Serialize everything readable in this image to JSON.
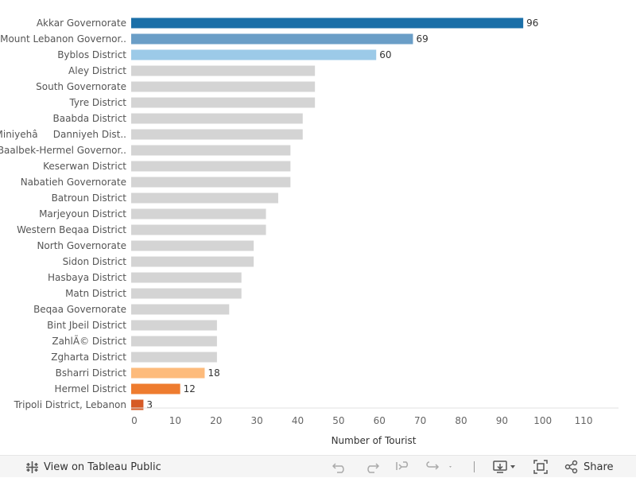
{
  "chart_data": {
    "type": "bar",
    "orientation": "horizontal",
    "title": "",
    "xlabel": "Number of Tourist",
    "ylabel": "",
    "xlim": [
      0,
      115
    ],
    "x_ticks": [
      0,
      10,
      20,
      30,
      40,
      50,
      60,
      70,
      80,
      90,
      100,
      110
    ],
    "grid": false,
    "categories": [
      "Akkar Governorate",
      "Mount Lebanon Governor..",
      "Byblos District",
      "Aley District",
      "South Governorate",
      "Tyre District",
      "Baabda District",
      "MiniyehâDanniyeh Dist..",
      "Baalbek-Hermel Governor..",
      "Keserwan District",
      "Nabatieh Governorate",
      "Batroun District",
      "Marjeyoun District",
      "Western Beqaa District",
      "North Governorate",
      "Sidon District",
      "Hasbaya District",
      "Matn District",
      "Beqaa Governorate",
      "Bint Jbeil District",
      "ZahlÃ© District",
      "Zgharta District",
      "Bsharri District",
      "Hermel District",
      "Tripoli District, Lebanon"
    ],
    "values": [
      96,
      69,
      60,
      45,
      45,
      45,
      42,
      42,
      39,
      39,
      39,
      36,
      33,
      33,
      30,
      30,
      27,
      27,
      24,
      21,
      21,
      21,
      18,
      12,
      3
    ],
    "value_labels": [
      "96",
      "69",
      "60",
      "",
      "",
      "",
      "",
      "",
      "",
      "",
      "",
      "",
      "",
      "",
      "",
      "",
      "",
      "",
      "",
      "",
      "",
      "",
      "18",
      "12",
      "3"
    ],
    "colors": [
      "#1a6fa8",
      "#6a9ec7",
      "#9ccae8",
      "#d4d4d4",
      "#d4d4d4",
      "#d4d4d4",
      "#d4d4d4",
      "#d4d4d4",
      "#d4d4d4",
      "#d4d4d4",
      "#d4d4d4",
      "#d4d4d4",
      "#d4d4d4",
      "#d4d4d4",
      "#d4d4d4",
      "#d4d4d4",
      "#d4d4d4",
      "#d4d4d4",
      "#d4d4d4",
      "#d4d4d4",
      "#d4d4d4",
      "#d4d4d4",
      "#fdbb7c",
      "#ee7c2f",
      "#d65a26"
    ]
  },
  "toolbar": {
    "view_label": "View on Tableau Public",
    "share_label": "Share",
    "icons": [
      "tableau-logo-icon",
      "undo-icon",
      "redo-icon",
      "revert-icon",
      "refresh-icon",
      "download-icon",
      "fullscreen-icon",
      "share-icon"
    ]
  }
}
